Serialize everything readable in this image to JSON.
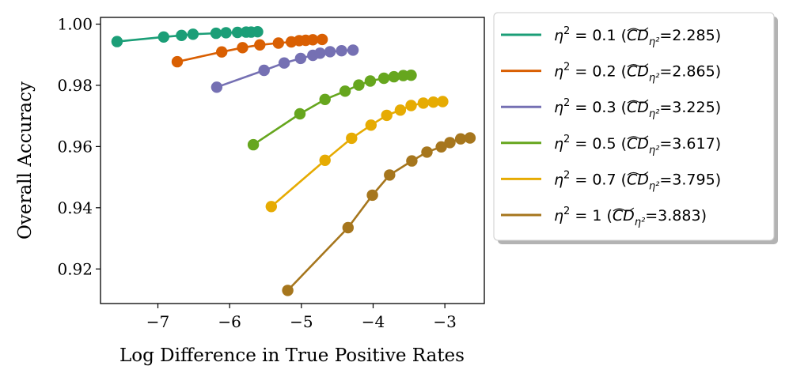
{
  "chart_data": {
    "type": "line",
    "xlabel": "Log Difference in True Positive Rates",
    "ylabel": "Overall Accuracy",
    "xlim": [
      -7.8,
      -2.45
    ],
    "ylim": [
      0.9087,
      1.0022
    ],
    "xticks": [
      -7,
      -6,
      -5,
      -4,
      -3
    ],
    "xtick_labels": [
      "−7",
      "−6",
      "−5",
      "−4",
      "−3"
    ],
    "yticks": [
      0.92,
      0.94,
      0.96,
      0.98,
      1.0
    ],
    "ytick_labels": [
      "0.92",
      "0.94",
      "0.96",
      "0.98",
      "1.00"
    ],
    "legend_position": "outside-right",
    "series": [
      {
        "name": "η² = 0.1 (CD̃η²=2.285)",
        "eta": "0.1",
        "cd": "2.285",
        "color": "#1b9e77",
        "x": [
          -7.57,
          -6.92,
          -6.67,
          -6.51,
          -6.19,
          -6.05,
          -5.89,
          -5.77,
          -5.7,
          -5.61
        ],
        "y": [
          0.9943,
          0.9958,
          0.9963,
          0.9967,
          0.997,
          0.9972,
          0.9973,
          0.9974,
          0.9974,
          0.9975
        ]
      },
      {
        "name": "η² = 0.2 (CD̃η²=2.865)",
        "eta": "0.2",
        "cd": "2.865",
        "color": "#d95f02",
        "x": [
          -6.73,
          -6.11,
          -5.82,
          -5.58,
          -5.32,
          -5.14,
          -5.03,
          -4.94,
          -4.84,
          -4.71
        ],
        "y": [
          0.9877,
          0.9909,
          0.9923,
          0.9932,
          0.9938,
          0.9942,
          0.9946,
          0.9947,
          0.9949,
          0.995
        ]
      },
      {
        "name": "η² = 0.3 (CD̃η²=3.225)",
        "eta": "0.3",
        "cd": "3.225",
        "color": "#7570b3",
        "x": [
          -6.18,
          -5.52,
          -5.24,
          -5.01,
          -4.84,
          -4.74,
          -4.6,
          -4.44,
          -4.28
        ],
        "y": [
          0.9794,
          0.9849,
          0.9873,
          0.9888,
          0.9898,
          0.9905,
          0.991,
          0.9913,
          0.9915
        ]
      },
      {
        "name": "η² = 0.5 (CD̃η²=3.617)",
        "eta": "0.5",
        "cd": "3.617",
        "color": "#66a61e",
        "x": [
          -5.67,
          -5.02,
          -4.67,
          -4.39,
          -4.2,
          -4.04,
          -3.85,
          -3.71,
          -3.58,
          -3.47
        ],
        "y": [
          0.9606,
          0.9707,
          0.9754,
          0.9781,
          0.9801,
          0.9814,
          0.9823,
          0.9828,
          0.9832,
          0.9833
        ]
      },
      {
        "name": "η² = 0.7 (CD̃η²=3.795)",
        "eta": "0.7",
        "cd": "3.795",
        "color": "#e6ab02",
        "x": [
          -5.42,
          -4.67,
          -4.3,
          -4.03,
          -3.81,
          -3.62,
          -3.47,
          -3.3,
          -3.16,
          -3.03
        ],
        "y": [
          0.9404,
          0.9555,
          0.9627,
          0.967,
          0.9702,
          0.9719,
          0.9734,
          0.9742,
          0.9745,
          0.9747
        ]
      },
      {
        "name": "η² = 1 (CD̃η²=3.883)",
        "eta": "1",
        "cd": "3.883",
        "color": "#a6761d",
        "x": [
          -5.19,
          -4.35,
          -4.01,
          -3.77,
          -3.46,
          -3.25,
          -3.05,
          -2.93,
          -2.78,
          -2.65
        ],
        "y": [
          0.913,
          0.9335,
          0.9441,
          0.9507,
          0.9553,
          0.9582,
          0.9599,
          0.9613,
          0.9625,
          0.9628
        ]
      }
    ]
  }
}
